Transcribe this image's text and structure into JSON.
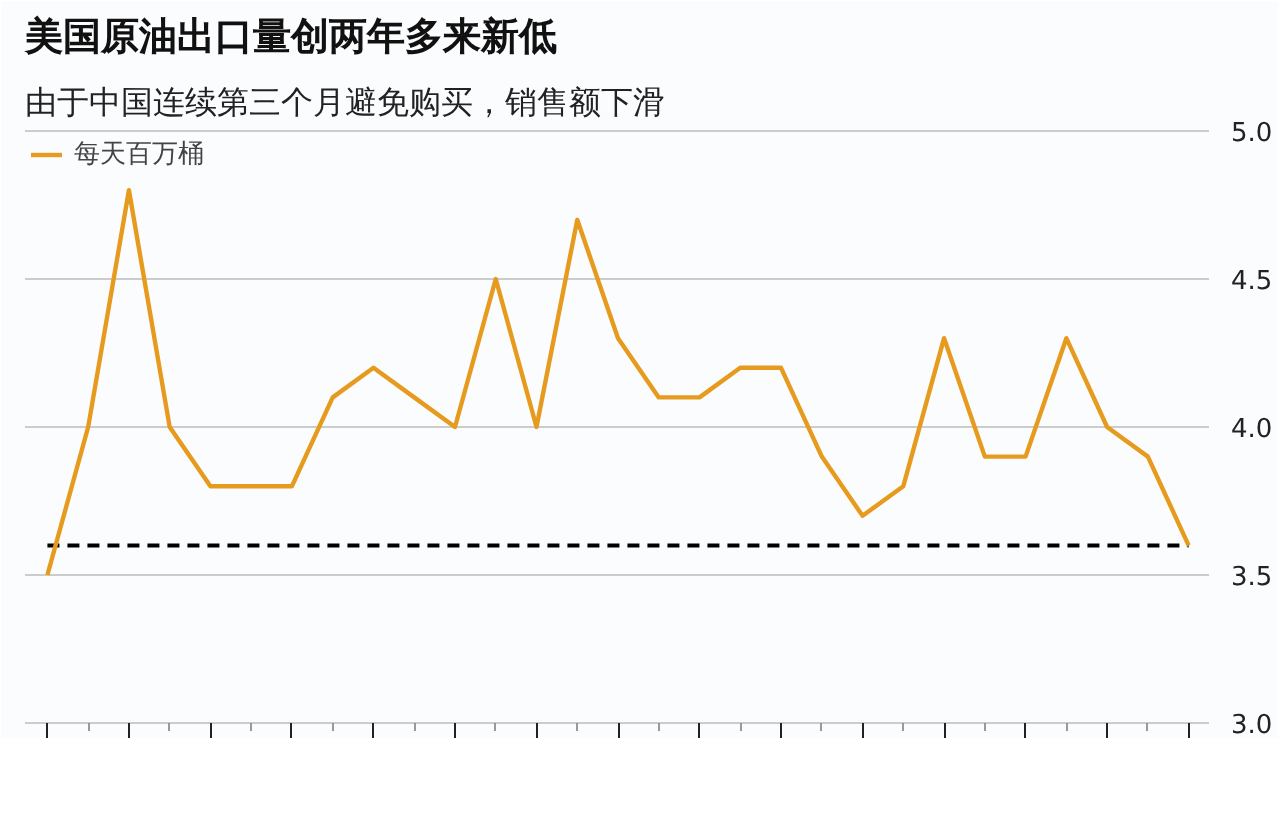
{
  "chart_data": {
    "type": "line",
    "title": "美国原油出口量创两年多来新低",
    "subtitle": "由于中国连续第三个月避免购买，销售额下滑",
    "categories": [
      null,
      null,
      null,
      null,
      null,
      null,
      null,
      null,
      null,
      null,
      null,
      null,
      null,
      null,
      null,
      null,
      null,
      null,
      null,
      null,
      null,
      null,
      null,
      null,
      null,
      null,
      null,
      null,
      null
    ],
    "series": [
      {
        "name": "每天百万桶",
        "color": "#e69b1e",
        "values": [
          3.5,
          4.0,
          4.8,
          4.0,
          3.8,
          3.8,
          3.8,
          4.1,
          4.2,
          4.1,
          4.0,
          4.5,
          4.0,
          4.7,
          4.3,
          4.1,
          4.1,
          4.2,
          4.2,
          3.9,
          3.7,
          3.8,
          4.3,
          3.9,
          3.9,
          4.3,
          4.0,
          3.9,
          3.6
        ]
      }
    ],
    "ylim": [
      3.0,
      5.0
    ],
    "yticks": [
      {
        "value": 3.0,
        "label": "3.0"
      },
      3.5,
      {
        "value": 4.0,
        "label": "4.0"
      },
      4.5,
      {
        "value": 5.0,
        "label": "5.0"
      }
    ],
    "ref_lines": [
      {
        "axis": "y",
        "value": 3.6,
        "color": "#000000",
        "line_style": "dashed"
      }
    ],
    "grid": "y",
    "legend": "top left",
    "marker": "none",
    "line_style": "solid",
    "tick_labels": "y"
  }
}
